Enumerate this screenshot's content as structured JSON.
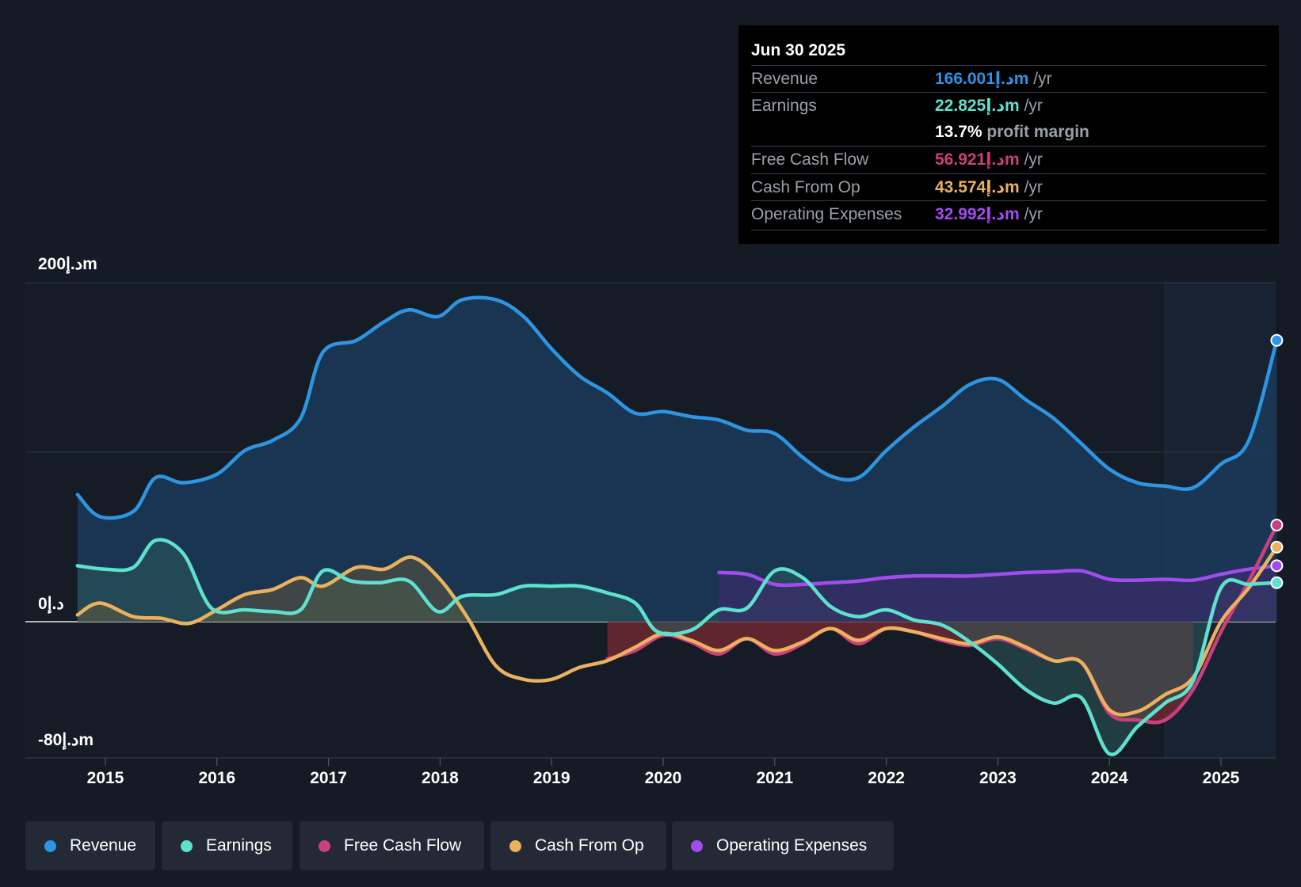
{
  "tooltip": {
    "date": "Jun 30 2025",
    "revenue_label": "Revenue",
    "revenue_value": "166.001د.إm",
    "revenue_unit": " /yr",
    "earnings_label": "Earnings",
    "earnings_value": "22.825د.إm",
    "earnings_unit": " /yr",
    "margin_value": "13.7%",
    "margin_label": " profit margin",
    "fcf_label": "Free Cash Flow",
    "fcf_value": "56.921د.إm",
    "fcf_unit": " /yr",
    "cfo_label": "Cash From Op",
    "cfo_value": "43.574د.إm",
    "cfo_unit": " /yr",
    "opex_label": "Operating Expenses",
    "opex_value": "32.992د.إm",
    "opex_unit": " /yr"
  },
  "legend": {
    "revenue": "Revenue",
    "earnings": "Earnings",
    "fcf": "Free Cash Flow",
    "cfo": "Cash From Op",
    "opex": "Operating Expenses"
  },
  "colors": {
    "revenue": "#2d95e2",
    "earnings": "#5ee1cf",
    "fcf": "#c9407a",
    "cfo": "#ebb15e",
    "opex": "#a24cf0"
  },
  "chart_data": {
    "type": "line",
    "title": "",
    "xlabel": "",
    "ylabel": "",
    "ylim": [
      -80,
      200
    ],
    "y_tick_labels": [
      {
        "value": 200,
        "label": "200د.إm"
      },
      {
        "value": 0,
        "label": "0د.إ"
      },
      {
        "value": -80,
        "label": "-80د.إm"
      }
    ],
    "x_tick_labels": [
      "2015",
      "2016",
      "2017",
      "2018",
      "2019",
      "2020",
      "2021",
      "2022",
      "2023",
      "2024",
      "2025"
    ],
    "x_ticks": [
      2015,
      2016,
      2017,
      2018,
      2019,
      2020,
      2021,
      2022,
      2023,
      2024,
      2025
    ],
    "xlim": [
      2014.3,
      2025.5
    ],
    "forecast_start": 2024.5,
    "series": [
      {
        "name": "Revenue",
        "key": "revenue",
        "filled": true,
        "x": [
          2014.75,
          2014.95,
          2015.25,
          2015.45,
          2015.7,
          2016.0,
          2016.25,
          2016.5,
          2016.75,
          2016.95,
          2017.25,
          2017.5,
          2017.72,
          2017.98,
          2018.2,
          2018.5,
          2018.75,
          2019.0,
          2019.25,
          2019.5,
          2019.75,
          2020.0,
          2020.25,
          2020.5,
          2020.75,
          2021.0,
          2021.25,
          2021.5,
          2021.75,
          2022.0,
          2022.25,
          2022.5,
          2022.75,
          2023.0,
          2023.25,
          2023.5,
          2023.75,
          2024.0,
          2024.25,
          2024.5,
          2024.75,
          2025.0,
          2025.25,
          2025.5
        ],
        "values": [
          75,
          62,
          65,
          85,
          82,
          87,
          101,
          107,
          120,
          159,
          166,
          177,
          184,
          180,
          190,
          190,
          180,
          161,
          145,
          135,
          123,
          124,
          121,
          119,
          113,
          111,
          97,
          86,
          85,
          101,
          115,
          127,
          140,
          143,
          131,
          120,
          105,
          90,
          82,
          80,
          79,
          93,
          107,
          166
        ]
      },
      {
        "name": "Earnings",
        "key": "earnings",
        "filled": true,
        "x": [
          2014.75,
          2015.0,
          2015.25,
          2015.45,
          2015.7,
          2015.95,
          2016.25,
          2016.5,
          2016.75,
          2016.95,
          2017.2,
          2017.45,
          2017.72,
          2017.98,
          2018.2,
          2018.5,
          2018.75,
          2019.0,
          2019.25,
          2019.5,
          2019.75,
          2019.95,
          2020.25,
          2020.5,
          2020.75,
          2021.0,
          2021.25,
          2021.5,
          2021.75,
          2022.0,
          2022.25,
          2022.5,
          2022.75,
          2023.0,
          2023.25,
          2023.5,
          2023.75,
          2024.0,
          2024.25,
          2024.5,
          2024.75,
          2025.0,
          2025.25,
          2025.5
        ],
        "values": [
          33,
          31,
          32,
          48,
          40,
          8,
          7,
          6,
          7,
          30,
          24,
          23,
          24,
          6,
          15,
          16,
          21,
          21,
          21,
          17,
          11,
          -6,
          -5,
          7,
          8,
          30,
          26,
          9,
          3,
          7,
          1,
          -2,
          -12,
          -25,
          -40,
          -48,
          -45,
          -78,
          -62,
          -48,
          -35,
          20,
          22,
          23
        ]
      },
      {
        "name": "Free Cash Flow",
        "key": "fcf",
        "filled": false,
        "x": [
          2019.5,
          2019.75,
          2020.0,
          2020.25,
          2020.5,
          2020.75,
          2021.0,
          2021.25,
          2021.5,
          2021.75,
          2022.0,
          2022.25,
          2022.5,
          2022.75,
          2023.0,
          2023.25,
          2023.5,
          2023.75,
          2024.0,
          2024.25,
          2024.5,
          2024.75,
          2025.0,
          2025.25,
          2025.5
        ],
        "values": [
          -22,
          -17,
          -8,
          -12,
          -19,
          -10,
          -19,
          -13,
          -4,
          -13,
          -4,
          -6,
          -11,
          -14,
          -10,
          -16,
          -23,
          -24,
          -54,
          -58,
          -58,
          -40,
          -6,
          24,
          57
        ]
      },
      {
        "name": "Cash From Op",
        "key": "cfo",
        "filled": false,
        "x": [
          2014.75,
          2014.95,
          2015.25,
          2015.5,
          2015.75,
          2016.0,
          2016.25,
          2016.5,
          2016.75,
          2016.95,
          2017.25,
          2017.5,
          2017.75,
          2018.0,
          2018.25,
          2018.5,
          2018.75,
          2019.0,
          2019.25,
          2019.5,
          2019.75,
          2020.0,
          2020.25,
          2020.5,
          2020.75,
          2021.0,
          2021.25,
          2021.5,
          2021.75,
          2022.0,
          2022.25,
          2022.5,
          2022.75,
          2023.0,
          2023.25,
          2023.5,
          2023.75,
          2024.0,
          2024.25,
          2024.5,
          2024.75,
          2025.0,
          2025.25,
          2025.5
        ],
        "values": [
          4,
          11,
          3,
          2,
          -1,
          7,
          16,
          19,
          26,
          21,
          32,
          31,
          38,
          25,
          2,
          -26,
          -34,
          -34,
          -27,
          -23,
          -15,
          -7,
          -11,
          -17,
          -10,
          -17,
          -12,
          -4,
          -11,
          -4,
          -6,
          -10,
          -13,
          -9,
          -15,
          -23,
          -24,
          -52,
          -53,
          -43,
          -33,
          0,
          20,
          44
        ]
      },
      {
        "name": "Operating Expenses",
        "key": "opex",
        "filled": true,
        "x": [
          2020.5,
          2020.75,
          2021.0,
          2021.25,
          2021.5,
          2021.75,
          2022.0,
          2022.25,
          2022.5,
          2022.75,
          2023.0,
          2023.25,
          2023.5,
          2023.75,
          2024.0,
          2024.25,
          2024.5,
          2024.75,
          2025.0,
          2025.25,
          2025.5
        ],
        "values": [
          29,
          28,
          22,
          22,
          23,
          24,
          26,
          27,
          27,
          27,
          28,
          29,
          29.5,
          30,
          25,
          24.5,
          25,
          24.5,
          28,
          31,
          33
        ]
      }
    ]
  }
}
